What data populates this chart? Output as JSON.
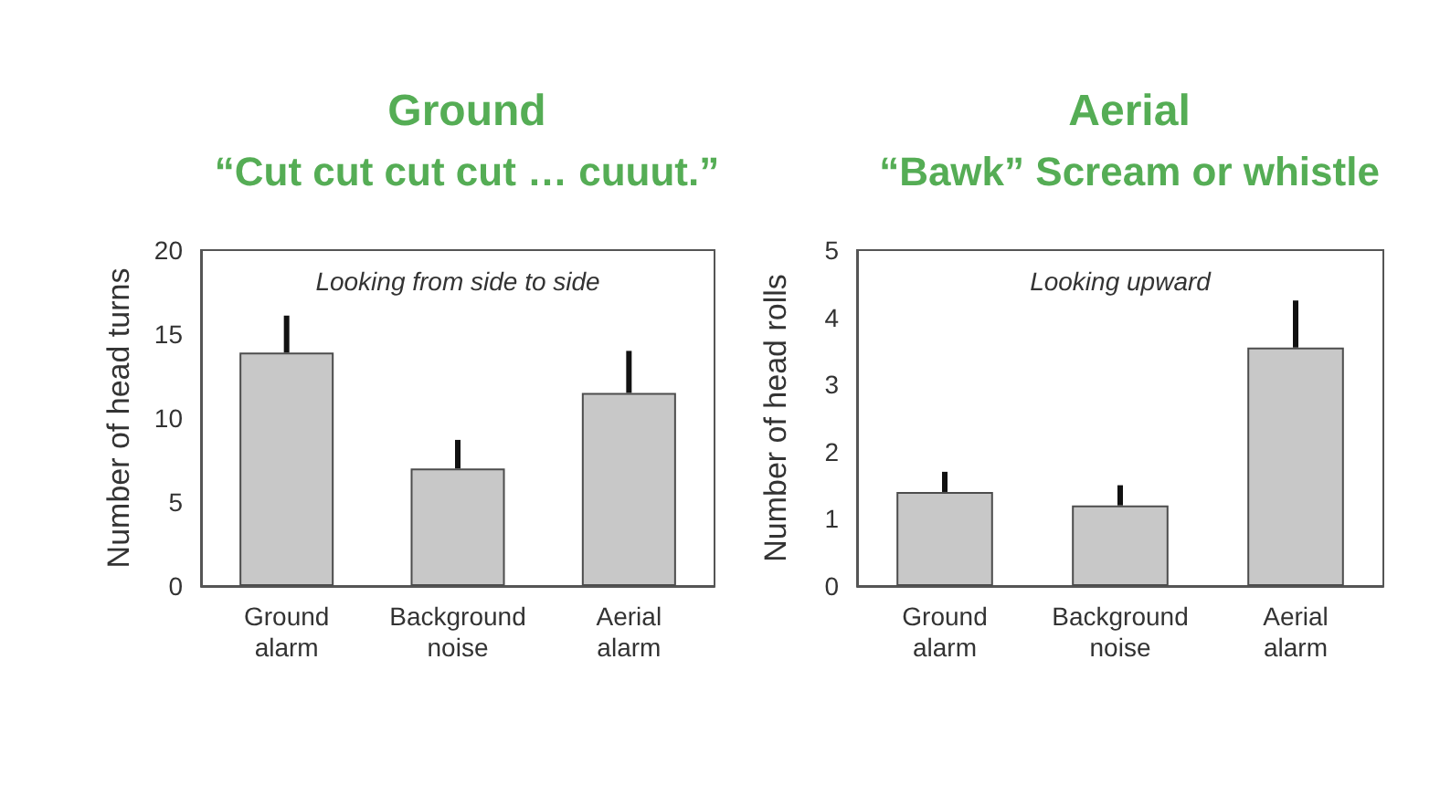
{
  "chart_data": [
    {
      "type": "bar",
      "title": "Ground",
      "subtitle": "“Cut cut cut cut … cuuut.”",
      "ylabel": "Number of head turns",
      "annotations": [
        "Looking from side to side"
      ],
      "categories": [
        "Ground alarm",
        "Background noise",
        "Aerial alarm"
      ],
      "values": [
        13.9,
        7.0,
        11.5
      ],
      "color": "#c8c8c8",
      "errors": [
        [
          13.9,
          16.1
        ],
        [
          7.0,
          8.7
        ],
        [
          11.5,
          14.0
        ]
      ],
      "ylim": [
        0,
        20
      ],
      "yticks": [
        0,
        5,
        10,
        15,
        20
      ]
    },
    {
      "type": "bar",
      "title": "Aerial",
      "subtitle": "“Bawk” Scream or whistle",
      "ylabel": "Number of head rolls",
      "annotations": [
        "Looking upward"
      ],
      "categories": [
        "Ground alarm",
        "Background noise",
        "Aerial alarm"
      ],
      "values": [
        1.4,
        1.2,
        3.55
      ],
      "color": "#c8c8c8",
      "errors": [
        [
          1.4,
          1.7
        ],
        [
          1.2,
          1.5
        ],
        [
          3.55,
          4.25
        ]
      ],
      "ylim": [
        0,
        5
      ],
      "yticks": [
        0,
        1,
        2,
        3,
        4,
        5
      ]
    }
  ]
}
